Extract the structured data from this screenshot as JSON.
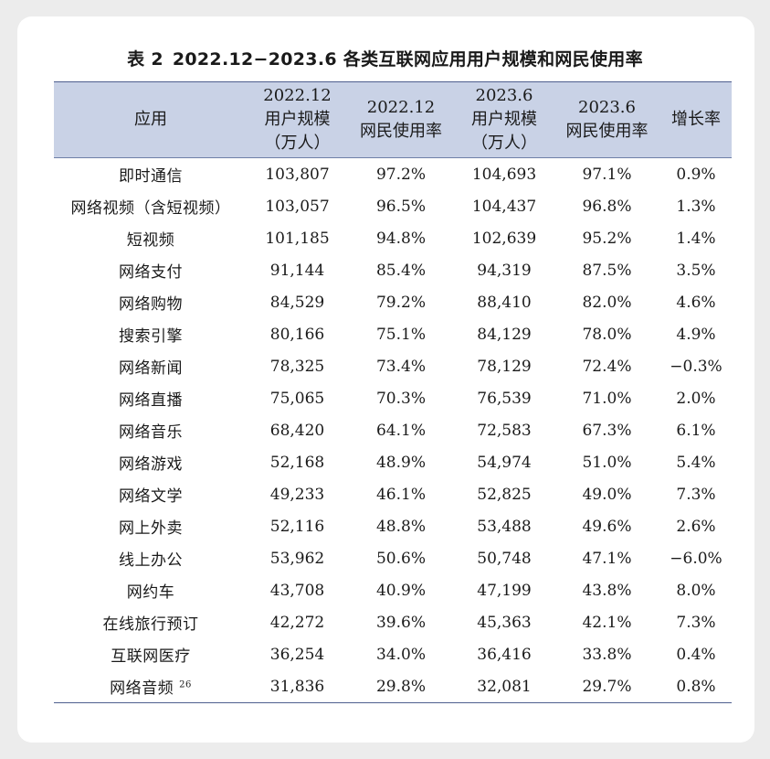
{
  "title": {
    "label": "表 2",
    "text": "2022.12−2023.6 各类互联网应用用户规模和网民使用率"
  },
  "table": {
    "headers": [
      [
        "应用"
      ],
      [
        "2022.12",
        "用户规模",
        "（万人）"
      ],
      [
        "2022.12",
        "网民使用率"
      ],
      [
        "2023.6",
        "用户规模",
        "（万人）"
      ],
      [
        "2023.6",
        "网民使用率"
      ],
      [
        "增长率"
      ]
    ],
    "rows": [
      {
        "name": "即时通信",
        "sup": "",
        "c1": "103,807",
        "c2": "97.2%",
        "c3": "104,693",
        "c4": "97.1%",
        "c5": "0.9%"
      },
      {
        "name": "网络视频（含短视频）",
        "sup": "",
        "c1": "103,057",
        "c2": "96.5%",
        "c3": "104,437",
        "c4": "96.8%",
        "c5": "1.3%"
      },
      {
        "name": "短视频",
        "sup": "",
        "c1": "101,185",
        "c2": "94.8%",
        "c3": "102,639",
        "c4": "95.2%",
        "c5": "1.4%"
      },
      {
        "name": "网络支付",
        "sup": "",
        "c1": "91,144",
        "c2": "85.4%",
        "c3": "94,319",
        "c4": "87.5%",
        "c5": "3.5%"
      },
      {
        "name": "网络购物",
        "sup": "",
        "c1": "84,529",
        "c2": "79.2%",
        "c3": "88,410",
        "c4": "82.0%",
        "c5": "4.6%"
      },
      {
        "name": "搜索引擎",
        "sup": "",
        "c1": "80,166",
        "c2": "75.1%",
        "c3": "84,129",
        "c4": "78.0%",
        "c5": "4.9%"
      },
      {
        "name": "网络新闻",
        "sup": "",
        "c1": "78,325",
        "c2": "73.4%",
        "c3": "78,129",
        "c4": "72.4%",
        "c5": "−0.3%"
      },
      {
        "name": "网络直播",
        "sup": "",
        "c1": "75,065",
        "c2": "70.3%",
        "c3": "76,539",
        "c4": "71.0%",
        "c5": "2.0%"
      },
      {
        "name": "网络音乐",
        "sup": "",
        "c1": "68,420",
        "c2": "64.1%",
        "c3": "72,583",
        "c4": "67.3%",
        "c5": "6.1%"
      },
      {
        "name": "网络游戏",
        "sup": "",
        "c1": "52,168",
        "c2": "48.9%",
        "c3": "54,974",
        "c4": "51.0%",
        "c5": "5.4%"
      },
      {
        "name": "网络文学",
        "sup": "",
        "c1": "49,233",
        "c2": "46.1%",
        "c3": "52,825",
        "c4": "49.0%",
        "c5": "7.3%"
      },
      {
        "name": "网上外卖",
        "sup": "",
        "c1": "52,116",
        "c2": "48.8%",
        "c3": "53,488",
        "c4": "49.6%",
        "c5": "2.6%"
      },
      {
        "name": "线上办公",
        "sup": "",
        "c1": "53,962",
        "c2": "50.6%",
        "c3": "50,748",
        "c4": "47.1%",
        "c5": "−6.0%"
      },
      {
        "name": "网约车",
        "sup": "",
        "c1": "43,708",
        "c2": "40.9%",
        "c3": "47,199",
        "c4": "43.8%",
        "c5": "8.0%"
      },
      {
        "name": "在线旅行预订",
        "sup": "",
        "c1": "42,272",
        "c2": "39.6%",
        "c3": "45,363",
        "c4": "42.1%",
        "c5": "7.3%"
      },
      {
        "name": "互联网医疗",
        "sup": "",
        "c1": "36,254",
        "c2": "34.0%",
        "c3": "36,416",
        "c4": "33.8%",
        "c5": "0.4%"
      },
      {
        "name": "网络音频",
        "sup": "26",
        "c1": "31,836",
        "c2": "29.8%",
        "c3": "32,081",
        "c4": "29.7%",
        "c5": "0.8%"
      }
    ]
  },
  "colors": {
    "header_bg": "#c9d2e6",
    "rule": "#4f5f8f",
    "card_bg": "#ffffff",
    "page_bg": "#ececec"
  }
}
